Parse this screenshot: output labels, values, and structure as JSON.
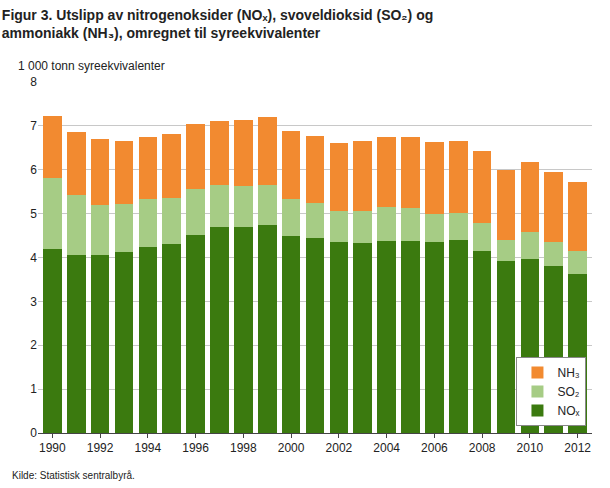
{
  "chart_data": {
    "type": "bar",
    "title": "Figur 3. Utslipp av nitrogenoksider (NOₓ), svoveldioksid (SO₂) og\nammoniakk (NH₃), omregnet til syreekvivalenter",
    "ylabel": "1 000 tonn syreekvivalenter",
    "source": "Kilde: Statistisk sentralbyrå.",
    "categories": [
      "1990",
      null,
      "1992",
      null,
      "1994",
      null,
      "1996",
      null,
      "1998",
      null,
      "2000",
      null,
      "2002",
      null,
      "2004",
      null,
      "2006",
      null,
      "2008",
      null,
      "2010",
      null,
      "2012"
    ],
    "series": [
      {
        "name": "NOₓ",
        "color": "#3b7a0f",
        "values": [
          4.2,
          4.05,
          4.05,
          4.13,
          4.25,
          4.3,
          4.52,
          4.7,
          4.7,
          4.75,
          4.48,
          4.45,
          4.35,
          4.33,
          4.38,
          4.37,
          4.35,
          4.4,
          4.15,
          3.92,
          3.97,
          3.8,
          3.62
        ]
      },
      {
        "name": "SO₂",
        "color": "#a6cc85",
        "values": [
          1.62,
          1.37,
          1.15,
          1.09,
          1.08,
          1.05,
          1.03,
          0.95,
          0.93,
          0.9,
          0.85,
          0.8,
          0.7,
          0.74,
          0.77,
          0.75,
          0.65,
          0.62,
          0.63,
          0.48,
          0.6,
          0.55,
          0.53
        ]
      },
      {
        "name": "NH₃",
        "color": "#f28a30",
        "values": [
          1.4,
          1.43,
          1.5,
          1.43,
          1.42,
          1.47,
          1.5,
          1.45,
          1.5,
          1.55,
          1.55,
          1.53,
          1.55,
          1.58,
          1.6,
          1.63,
          1.63,
          1.63,
          1.64,
          1.6,
          1.61,
          1.6,
          1.58
        ]
      }
    ],
    "ylim": [
      0,
      8
    ],
    "yticks": [
      0,
      1,
      2,
      3,
      4,
      5,
      6,
      7,
      8
    ],
    "stacked": true,
    "grid": true,
    "legend": "bottom right"
  }
}
